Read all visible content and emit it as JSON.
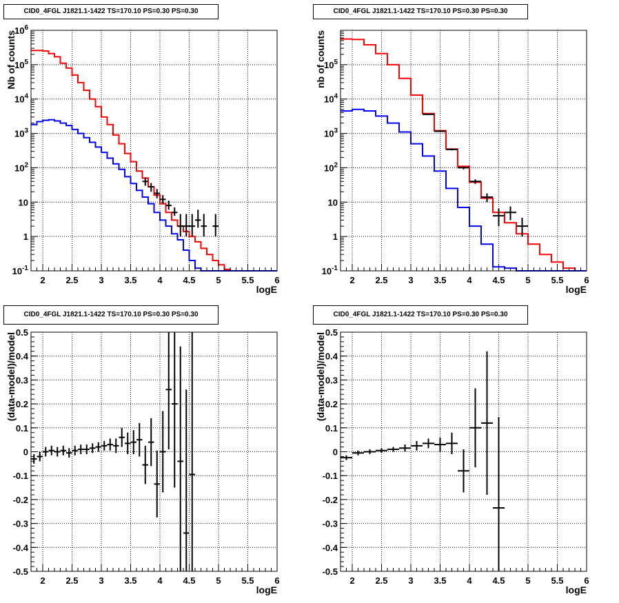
{
  "chart_data": [
    {
      "type": "line",
      "title": "CID0_4FGL J1821.1-1422 TS=170.10 PS=0.30 PS=0.30",
      "xlabel": "logE",
      "ylabel": "Nb of counts",
      "yscale": "log",
      "xlim": [
        1.8,
        6.0
      ],
      "ylim": [
        0.1,
        1000000
      ],
      "grid": true,
      "xticks": [
        "2",
        "2.5",
        "3",
        "3.5",
        "4",
        "4.5",
        "5",
        "5.5",
        "6"
      ],
      "yticks": [
        "10^-1",
        "1",
        "10",
        "10^2",
        "10^3",
        "10^4",
        "10^5",
        "10^6"
      ],
      "bin_width": 0.1,
      "series": [
        {
          "color": "#ff0000",
          "style": "histogram",
          "x": [
            1.8,
            1.9,
            2.0,
            2.1,
            2.2,
            2.3,
            2.4,
            2.5,
            2.6,
            2.7,
            2.8,
            2.9,
            3.0,
            3.1,
            3.2,
            3.3,
            3.4,
            3.5,
            3.6,
            3.7,
            3.8,
            3.9,
            4.0,
            4.1,
            4.2,
            4.3,
            4.4,
            4.5,
            4.6,
            4.7,
            4.8,
            4.9,
            5.0,
            5.1,
            5.2,
            5.3,
            5.4,
            5.5,
            5.6,
            5.7,
            5.8,
            5.9
          ],
          "values": [
            260000,
            260000,
            250000,
            210000,
            170000,
            110000,
            80000,
            50000,
            30000,
            18000,
            10000,
            6000,
            3000,
            1800,
            900,
            500,
            260,
            150,
            80,
            50,
            28,
            16,
            9,
            5,
            3,
            2,
            1.4,
            1.0,
            0.7,
            0.45,
            0.3,
            0.2,
            0.15,
            0.11,
            0.1,
            0.1,
            0.1,
            0.1,
            0.1,
            0.1,
            0.1,
            0.1
          ]
        },
        {
          "color": "#0000ff",
          "style": "histogram",
          "x": [
            1.8,
            1.9,
            2.0,
            2.1,
            2.2,
            2.3,
            2.4,
            2.5,
            2.6,
            2.7,
            2.8,
            2.9,
            3.0,
            3.1,
            3.2,
            3.3,
            3.4,
            3.5,
            3.6,
            3.7,
            3.8,
            3.9,
            4.0,
            4.1,
            4.2,
            4.3,
            4.4,
            4.5,
            4.6,
            4.7,
            4.8,
            4.9,
            5.0,
            5.1,
            5.2,
            5.3,
            5.4,
            5.5,
            5.6,
            5.7,
            5.8,
            5.9
          ],
          "values": [
            1800,
            2200,
            2400,
            2500,
            2300,
            2000,
            1700,
            1300,
            1000,
            750,
            550,
            400,
            280,
            190,
            130,
            90,
            55,
            35,
            22,
            14,
            9,
            5,
            3,
            2,
            1.2,
            0.8,
            0.4,
            0.2,
            0.12,
            0.1,
            0.1,
            0.1,
            0.1,
            0.1,
            0.1,
            0.1,
            0.1,
            0.1,
            0.1,
            0.1,
            0.1,
            0.1
          ]
        },
        {
          "color": "#000000",
          "style": "points",
          "x": [
            3.75,
            3.85,
            3.95,
            4.05,
            4.15,
            4.25,
            4.35,
            4.45,
            4.55,
            4.65,
            4.75,
            4.95
          ],
          "values": [
            40,
            28,
            18,
            12,
            8,
            5,
            2,
            2,
            2,
            3,
            2,
            2
          ],
          "err_low": [
            30,
            20,
            13,
            9,
            6,
            4,
            1.0,
            1.0,
            1.0,
            1.8,
            1.0,
            1.0
          ],
          "err_high": [
            52,
            36,
            24,
            16,
            11,
            7,
            4.5,
            4.5,
            4.5,
            6,
            4.5,
            4.5
          ]
        }
      ]
    },
    {
      "type": "line",
      "title": "CID0_4FGL J1821.1-1422 TS=170.10 PS=0.30 PS=0.30",
      "xlabel": "logE",
      "ylabel": "nb of counts",
      "yscale": "log",
      "xlim": [
        1.8,
        6.0
      ],
      "ylim": [
        0.1,
        1000000
      ],
      "grid": true,
      "xticks": [
        "2",
        "2.5",
        "3",
        "3.5",
        "4",
        "4.5",
        "5",
        "5.5",
        "6"
      ],
      "yticks": [
        "10^-1",
        "1",
        "10",
        "10^2",
        "10^3",
        "10^4",
        "10^5"
      ],
      "bin_width": 0.2,
      "series": [
        {
          "color": "#ff0000",
          "style": "histogram",
          "x": [
            1.8,
            2.0,
            2.2,
            2.4,
            2.6,
            2.8,
            3.0,
            3.2,
            3.4,
            3.6,
            3.8,
            4.0,
            4.2,
            4.4,
            4.6,
            4.8,
            5.0,
            5.2,
            5.4,
            5.6,
            5.8
          ],
          "values": [
            560000,
            540000,
            380000,
            210000,
            100000,
            40000,
            13000,
            3800,
            1200,
            350,
            110,
            38,
            13,
            5,
            2.5,
            1.2,
            0.6,
            0.3,
            0.18,
            0.12,
            0.1
          ]
        },
        {
          "color": "#0000ff",
          "style": "histogram",
          "x": [
            1.8,
            2.0,
            2.2,
            2.4,
            2.6,
            2.8,
            3.0,
            3.2,
            3.4,
            3.6,
            3.8,
            4.0,
            4.2,
            4.4,
            4.6,
            4.8,
            5.0,
            5.2,
            5.4,
            5.6,
            5.8
          ],
          "values": [
            4500,
            5000,
            4500,
            3200,
            2000,
            1100,
            500,
            220,
            80,
            25,
            7,
            2,
            0.6,
            0.13,
            0.12,
            0.1,
            0.1,
            0.1,
            0.1,
            0.1,
            0.1
          ]
        },
        {
          "color": "#000000",
          "style": "points",
          "x": [
            3.3,
            3.5,
            3.7,
            3.9,
            4.1,
            4.3,
            4.5,
            4.7,
            4.9
          ],
          "values": [
            3600,
            1150,
            340,
            100,
            40,
            14,
            4,
            5,
            2
          ],
          "err_low": [
            3480,
            1110,
            320,
            90,
            34,
            10,
            2,
            3,
            1
          ],
          "err_high": [
            3720,
            1190,
            360,
            110,
            46,
            18,
            6.5,
            7.5,
            3.5
          ]
        }
      ]
    },
    {
      "type": "scatter",
      "title": "CID0_4FGL J1821.1-1422 TS=170.10 PS=0.30 PS=0.30",
      "xlabel": "logE",
      "ylabel": "(data-model)/model",
      "xlim": [
        1.8,
        6.0
      ],
      "ylim": [
        -0.5,
        0.5
      ],
      "grid": true,
      "xticks": [
        "2",
        "2.5",
        "3",
        "3.5",
        "4",
        "4.5",
        "5",
        "5.5",
        "6"
      ],
      "yticks": [
        "-0.5",
        "-0.4",
        "-0.3",
        "-0.2",
        "-0.1",
        "0",
        "0.1",
        "0.2",
        "0.3",
        "0.4",
        "0.5"
      ],
      "bin_width": 0.1,
      "series": [
        {
          "color": "#000000",
          "style": "points",
          "x": [
            1.85,
            1.95,
            2.05,
            2.15,
            2.25,
            2.35,
            2.45,
            2.55,
            2.65,
            2.75,
            2.85,
            2.95,
            3.05,
            3.15,
            3.25,
            3.35,
            3.45,
            3.55,
            3.65,
            3.75,
            3.85,
            3.95,
            4.05,
            4.15,
            4.25,
            4.35,
            4.45,
            4.55
          ],
          "values": [
            -0.03,
            -0.02,
            0.0,
            0.005,
            0.0,
            0.005,
            -0.005,
            0.005,
            0.01,
            0.01,
            0.015,
            0.02,
            0.025,
            0.03,
            0.025,
            0.06,
            0.035,
            0.04,
            0.05,
            -0.055,
            0.04,
            -0.135,
            0.0,
            0.26,
            0.2,
            -0.04,
            -0.34,
            -0.095
          ],
          "errors": [
            0.02,
            0.02,
            0.02,
            0.02,
            0.02,
            0.02,
            0.02,
            0.02,
            0.02,
            0.02,
            0.02,
            0.02,
            0.02,
            0.025,
            0.03,
            0.04,
            0.045,
            0.05,
            0.07,
            0.08,
            0.1,
            0.14,
            0.17,
            0.25,
            0.35,
            0.48,
            0.6,
            0.7
          ]
        }
      ]
    },
    {
      "type": "scatter",
      "title": "CID0_4FGL J1821.1-1422 TS=170.10 PS=0.30 PS=0.30",
      "xlabel": "logE",
      "ylabel": "(data-model)/model",
      "xlim": [
        1.8,
        6.0
      ],
      "ylim": [
        -0.5,
        0.5
      ],
      "grid": true,
      "xticks": [
        "2",
        "2.5",
        "3",
        "3.5",
        "4",
        "4.5",
        "5",
        "5.5",
        "6"
      ],
      "yticks": [
        "-0.5",
        "-0.4",
        "-0.3",
        "-0.2",
        "-0.1",
        "0",
        "0.1",
        "0.2",
        "0.3",
        "0.4",
        "0.5"
      ],
      "bin_width": 0.2,
      "series": [
        {
          "color": "#000000",
          "style": "points",
          "x": [
            1.9,
            2.1,
            2.3,
            2.5,
            2.7,
            2.9,
            3.1,
            3.3,
            3.5,
            3.7,
            3.9,
            4.1,
            4.3,
            4.5
          ],
          "values": [
            -0.025,
            -0.005,
            0.0,
            0.005,
            0.01,
            0.015,
            0.025,
            0.035,
            0.03,
            0.035,
            -0.08,
            0.1,
            0.12,
            -0.235
          ],
          "errors": [
            0.01,
            0.01,
            0.01,
            0.01,
            0.01,
            0.015,
            0.02,
            0.02,
            0.03,
            0.045,
            0.09,
            0.165,
            0.3,
            0.38
          ]
        }
      ]
    }
  ]
}
